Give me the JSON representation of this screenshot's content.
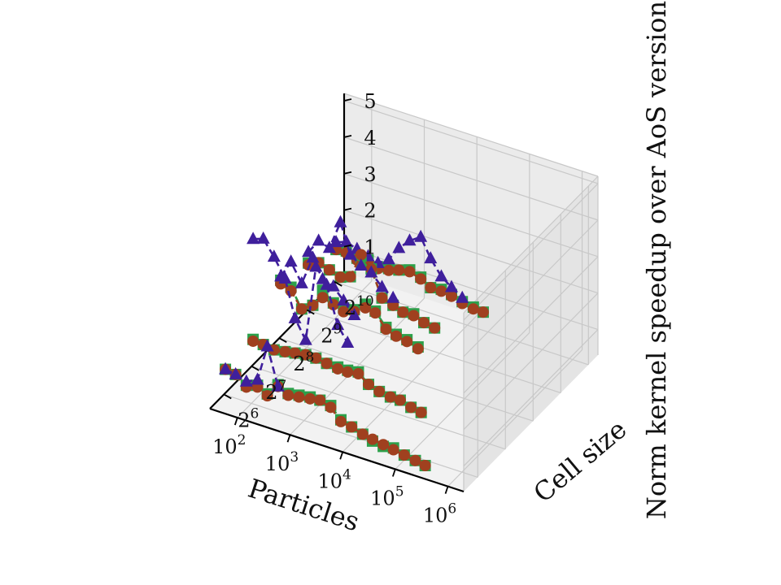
{
  "chart_data": {
    "type": "3d-line",
    "title": "",
    "xlabel": "Particles",
    "ylabel": "Cell size",
    "zlabel": "Norm kernel speedup over AoS version",
    "x_scale": "log10",
    "x_ticks": [
      {
        "value": 100,
        "base": "10",
        "exp": "2"
      },
      {
        "value": 1000,
        "base": "10",
        "exp": "3"
      },
      {
        "value": 10000,
        "base": "10",
        "exp": "4"
      },
      {
        "value": 100000,
        "base": "10",
        "exp": "5"
      },
      {
        "value": 1000000,
        "base": "10",
        "exp": "6"
      }
    ],
    "y_ticks": [
      {
        "value": 64,
        "base": "2",
        "exp": "6"
      },
      {
        "value": 128,
        "base": "2",
        "exp": "7"
      },
      {
        "value": 256,
        "base": "2",
        "exp": "8"
      },
      {
        "value": 512,
        "base": "2",
        "exp": "9"
      },
      {
        "value": 1024,
        "base": "2",
        "exp": "10"
      }
    ],
    "z_ticks": [
      "1",
      "2",
      "3",
      "4",
      "5"
    ],
    "xlim": [
      30,
      2000000
    ],
    "ylim": [
      45,
      1300
    ],
    "zlim": [
      0.3,
      5.2
    ],
    "grid": true,
    "marker_styles": [
      {
        "marker": "square",
        "color": "#2ca04a"
      },
      {
        "marker": "circle",
        "color": "#a0401f"
      },
      {
        "marker": "triangle",
        "color": "#3f1f9c"
      }
    ],
    "x": [
      32,
      50,
      80,
      130,
      200,
      320,
      500,
      800,
      1300,
      2000,
      3200,
      5000,
      8000,
      13000,
      20000,
      32000,
      50000,
      80000,
      130000,
      200000,
      320000,
      500000,
      800000,
      1300000
    ],
    "groups": [
      {
        "cell_size": 64,
        "series": [
          {
            "marker": 0,
            "values": [
              1.0,
              0.95,
              0.75,
              0.85,
              0.7,
              1.05,
              0.9,
              0.95,
              1.0,
              1.0,
              0.95,
              0.65,
              0.55,
              0.45,
              0.35,
              0.3,
              0.35,
              0.25,
              0.2,
              0.15
            ]
          },
          {
            "marker": 1,
            "values": [
              1.0,
              0.95,
              0.7,
              0.8,
              0.65,
              1.0,
              0.85,
              0.9,
              0.95,
              1.0,
              0.9,
              0.6,
              0.55,
              0.45,
              0.4,
              0.35,
              0.3,
              0.25,
              0.2,
              0.15
            ]
          },
          {
            "marker": 2,
            "values": [
              1.0,
              0.95,
              0.85,
              1.0,
              2.0,
              1.0
            ]
          }
        ]
      },
      {
        "cell_size": 128,
        "series": [
          {
            "marker": 0,
            "values": [
              1.05,
              1.0,
              0.95,
              1.0,
              1.05,
              1.1,
              1.1,
              1.05,
              1.05,
              1.05,
              1.1,
              0.85,
              0.75,
              0.7,
              0.7,
              0.6,
              0.55
            ]
          },
          {
            "marker": 1,
            "values": [
              1.0,
              1.0,
              0.95,
              1.0,
              1.05,
              1.1,
              1.1,
              1.05,
              1.0,
              1.0,
              1.05,
              0.85,
              0.75,
              0.7,
              0.7,
              0.6,
              0.55
            ]
          },
          {
            "marker": 2,
            "values": [
              3.8,
              3.9,
              3.5,
              3.0,
              2.0,
              1.5,
              3.6,
              3.2,
              2.2,
              1.8
            ]
          }
        ]
      },
      {
        "cell_size": 256,
        "series": [
          {
            "marker": 0,
            "values": [
              1.9,
              1.8,
              1.3,
              1.5,
              2.0,
              1.75,
              1.7,
              1.75,
              2.0,
              1.9,
              1.55,
              1.45,
              1.4,
              1.3
            ]
          },
          {
            "marker": 1,
            "values": [
              1.8,
              1.7,
              1.3,
              1.5,
              1.8,
              1.7,
              1.6,
              1.7,
              1.9,
              1.85,
              1.5,
              1.4,
              1.35,
              1.25
            ]
          },
          {
            "marker": 2,
            "values": [
              2.0,
              2.5,
              2.0,
              2.8,
              2.3,
              2.2,
              1.9,
              1.6
            ]
          }
        ]
      },
      {
        "cell_size": 512,
        "series": [
          {
            "marker": 0,
            "values": [
              1.6,
              1.7,
              1.6,
              1.5,
              1.6,
              2.1,
              2.0,
              1.3,
              1.2,
              1.1,
              1.15,
              1.0,
              0.95
            ]
          },
          {
            "marker": 1,
            "values": [
              1.55,
              1.7,
              1.6,
              1.5,
              1.6,
              2.3,
              2.0,
              1.3,
              1.2,
              1.1,
              1.1,
              1.0,
              0.95
            ]
          },
          {
            "marker": 2,
            "values": [
              1.9,
              2.3,
              2.2,
              3.0,
              2.2,
              2.0,
              1.9,
              1.6,
              1.4
            ]
          }
        ]
      },
      {
        "cell_size": 1024,
        "series": [
          {
            "marker": 0,
            "values": [
              1.2,
              1.25,
              1.15,
              1.2,
              1.1,
              1.15,
              1.2,
              1.3,
              1.2,
              1.0,
              1.05,
              1.0,
              0.9,
              0.85,
              0.8
            ]
          },
          {
            "marker": 1,
            "values": [
              1.2,
              1.2,
              1.1,
              1.15,
              1.05,
              1.1,
              1.2,
              1.25,
              1.15,
              1.0,
              1.0,
              0.95,
              0.85,
              0.8,
              0.8
            ]
          },
          {
            "marker": 2,
            "values": [
              1.4,
              1.5,
              1.4,
              1.3,
              1.2,
              1.4,
              1.8,
              2.1,
              2.3,
              1.8,
              1.4,
              1.2,
              1.0
            ]
          }
        ]
      }
    ]
  }
}
